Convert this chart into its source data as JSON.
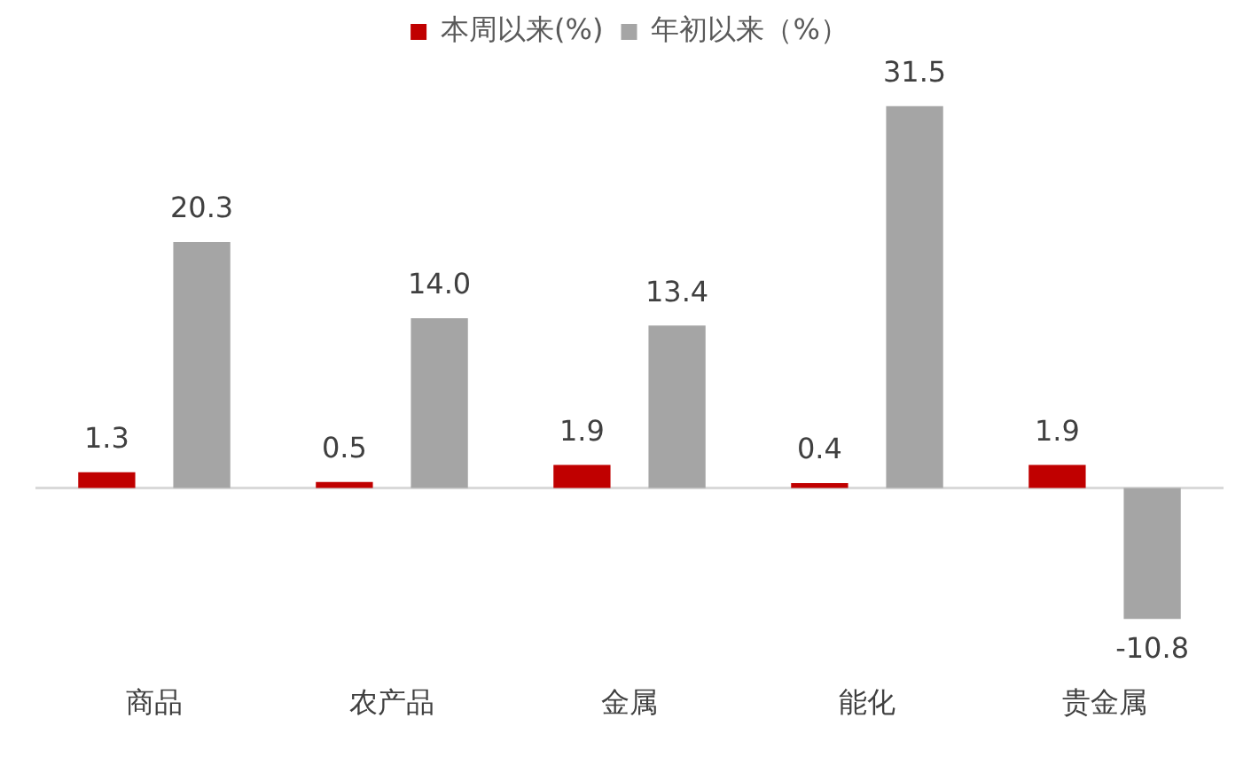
{
  "chart_data": {
    "type": "bar",
    "categories": [
      "商品",
      "农产品",
      "金属",
      "能化",
      "贵金属"
    ],
    "series": [
      {
        "name": "本周以来(%)",
        "color": "#c00000",
        "values": [
          1.3,
          0.5,
          1.9,
          0.4,
          1.9
        ],
        "value_labels": [
          "1.3",
          "0.5",
          "1.9",
          "0.4",
          "1.9"
        ]
      },
      {
        "name": "年初以来（%）",
        "color": "#a5a5a5",
        "values": [
          20.3,
          14.0,
          13.4,
          31.5,
          -10.8
        ],
        "value_labels": [
          "20.3",
          "14.0",
          "13.4",
          "31.5",
          "-10.8"
        ]
      }
    ],
    "grid": false,
    "legend": "top"
  }
}
